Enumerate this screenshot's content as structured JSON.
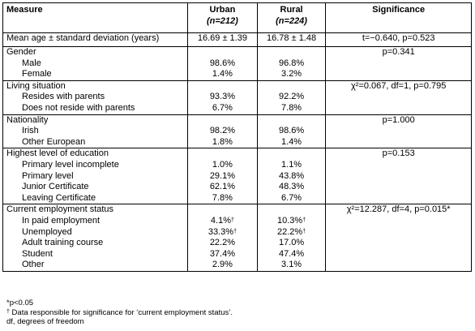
{
  "header": {
    "measure": "Measure",
    "urban_label": "Urban",
    "urban_n": "(n=212)",
    "rural_label": "Rural",
    "rural_n": "(n=224)",
    "significance": "Significance"
  },
  "rows": {
    "mean_age": {
      "label": "Mean age ± standard deviation (years)",
      "urban": "16.69 ± 1.39",
      "rural": "16.78 ± 1.48",
      "sig": "t=−0.640, p=0.523"
    },
    "gender": {
      "label": "Gender",
      "sig": "p=0.341",
      "items": [
        {
          "label": "Male",
          "urban": "98.6%",
          "rural": "96.8%"
        },
        {
          "label": "Female",
          "urban": "1.4%",
          "rural": "3.2%"
        }
      ]
    },
    "living": {
      "label": "Living situation",
      "sig": "χ²=0.067, df=1, p=0.795",
      "items": [
        {
          "label": "Resides with parents",
          "urban": "93.3%",
          "rural": "92.2%"
        },
        {
          "label": "Does not reside with parents",
          "urban": "6.7%",
          "rural": "7.8%"
        }
      ]
    },
    "nationality": {
      "label": "Nationality",
      "sig": "p=1.000",
      "items": [
        {
          "label": "Irish",
          "urban": "98.2%",
          "rural": "98.6%"
        },
        {
          "label": "Other European",
          "urban": "1.8%",
          "rural": "1.4%"
        }
      ]
    },
    "education": {
      "label": "Highest level of education",
      "sig": "p=0.153",
      "items": [
        {
          "label": "Primary level incomplete",
          "urban": "1.0%",
          "rural": "1.1%"
        },
        {
          "label": "Primary level",
          "urban": "29.1%",
          "rural": "43.8%"
        },
        {
          "label": "Junior Certificate",
          "urban": "62.1%",
          "rural": "48.3%"
        },
        {
          "label": "Leaving Certificate",
          "urban": "7.8%",
          "rural": "6.7%"
        }
      ]
    },
    "employment": {
      "label": "Current employment status",
      "sig": "χ²=12.287, df=4, p=0.015*",
      "items": [
        {
          "label": "In paid employment",
          "urban": "4.1%",
          "urban_mark": "†",
          "rural": "10.3%",
          "rural_mark": "†"
        },
        {
          "label": "Unemployed",
          "urban": "33.3%",
          "urban_mark": "†",
          "rural": "22.2%",
          "rural_mark": "†"
        },
        {
          "label": "Adult training course",
          "urban": "22.2%",
          "rural": "17.0%"
        },
        {
          "label": "Student",
          "urban": "37.4%",
          "rural": "47.4%"
        },
        {
          "label": "Other",
          "urban": "2.9%",
          "rural": "3.1%"
        }
      ]
    }
  },
  "notes": {
    "n1": "*p<0.05",
    "n2_mark": "†",
    "n2": " Data responsible for significance for ‘current employment status’.",
    "n3": "df, degrees of freedom"
  }
}
